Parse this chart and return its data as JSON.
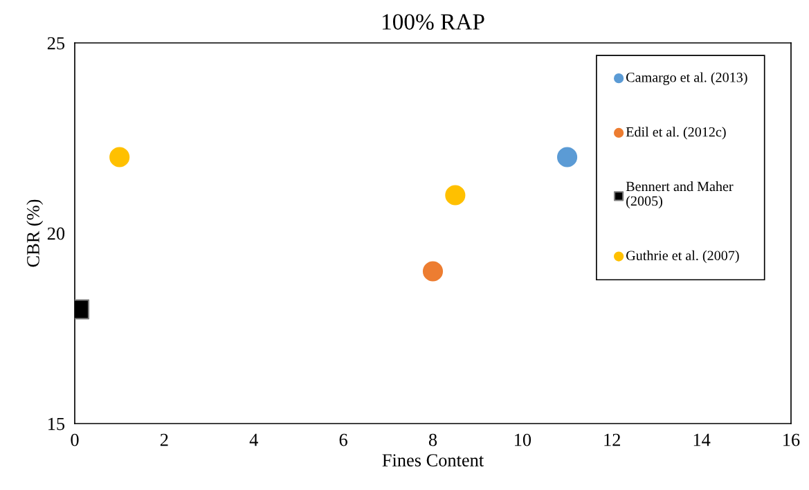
{
  "chart_data": {
    "type": "scatter",
    "title": "100% RAP",
    "xlabel": "Fines Content",
    "ylabel": "CBR (%)",
    "xlim": [
      0,
      16
    ],
    "xticks": [
      0,
      2,
      4,
      6,
      8,
      10,
      12,
      14,
      16
    ],
    "ylim": [
      15,
      25
    ],
    "yticks": [
      15,
      20,
      25
    ],
    "grid": false,
    "legend": "right",
    "series": [
      {
        "name": "Camargo et al. (2013)",
        "color": "#5b9bd5",
        "marker": "circle",
        "x": [
          11
        ],
        "values": [
          22
        ]
      },
      {
        "name": "Edil et al. (2012c)",
        "color": "#ed7d31",
        "marker": "circle",
        "x": [
          8
        ],
        "values": [
          19
        ]
      },
      {
        "name": "Bennert and Maher\n(2005)",
        "color": "#000000",
        "marker": "square",
        "x": [
          0.1
        ],
        "values": [
          18
        ]
      },
      {
        "name": "Guthrie et al. (2007)",
        "color": "#ffc000",
        "marker": "circle",
        "x": [
          1,
          8.5
        ],
        "values": [
          22,
          21
        ]
      }
    ]
  }
}
